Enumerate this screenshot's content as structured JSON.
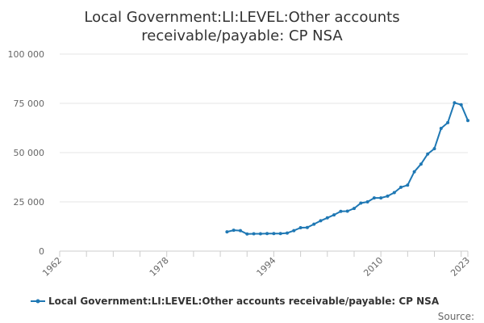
{
  "chart_data": {
    "type": "line",
    "title_lines": [
      "Local Government:LI:LEVEL:Other accounts",
      "receivable/payable: CP NSA"
    ],
    "xlabel": "",
    "ylabel": "",
    "xlim": [
      1962,
      2023
    ],
    "ylim": [
      0,
      100000
    ],
    "x_ticks": [
      "1962",
      "1978",
      "1994",
      "2010",
      "2023"
    ],
    "x_tick_values": [
      1962,
      1978,
      1994,
      2010,
      2023
    ],
    "y_ticks": [
      "0",
      "25 000",
      "50 000",
      "75 000",
      "100 000"
    ],
    "y_tick_values": [
      0,
      25000,
      50000,
      75000,
      100000
    ],
    "grid": "horizontal",
    "legend_position": "bottom",
    "series": [
      {
        "name": "Local Government:LI:LEVEL:Other accounts receivable/payable: CP NSA",
        "color": "#1f78b4",
        "x": [
          1987,
          1988,
          1989,
          1990,
          1991,
          1992,
          1993,
          1994,
          1995,
          1996,
          1997,
          1998,
          1999,
          2000,
          2001,
          2002,
          2003,
          2004,
          2005,
          2006,
          2007,
          2008,
          2009,
          2010,
          2011,
          2012,
          2013,
          2014,
          2015,
          2016,
          2017,
          2018,
          2019,
          2020,
          2021,
          2022,
          2023
        ],
        "values": [
          9800,
          10600,
          10400,
          8700,
          8800,
          8800,
          8900,
          8900,
          8900,
          9200,
          10400,
          11900,
          12000,
          13700,
          15400,
          16900,
          18400,
          20200,
          20300,
          21700,
          24400,
          25000,
          27000,
          27000,
          27900,
          29700,
          32400,
          33500,
          40300,
          44200,
          49300,
          52000,
          62300,
          65200,
          75300,
          74300,
          66300
        ]
      }
    ]
  },
  "source_label": "Source:"
}
